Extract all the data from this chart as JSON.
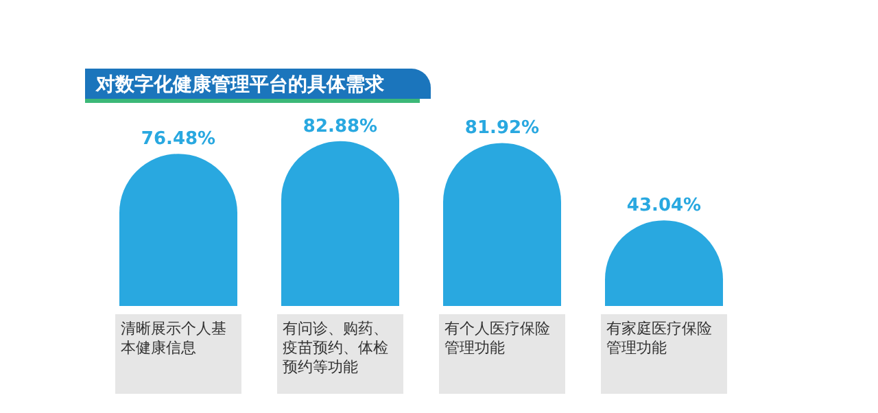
{
  "chart_data": {
    "type": "bar",
    "title": "对数字化健康管理平台的具体需求",
    "categories": [
      "清晰展示个人基本健康信息",
      "有问诊、购药、疫苗预约、体检预约等功能",
      "有个人医疗保险管理功能",
      "有家庭医疗保险管理功能"
    ],
    "values": [
      76.48,
      82.88,
      81.92,
      43.04
    ],
    "value_labels": [
      "76.48%",
      "82.88%",
      "81.92%",
      "43.04%"
    ],
    "color": "#29a8e0"
  }
}
